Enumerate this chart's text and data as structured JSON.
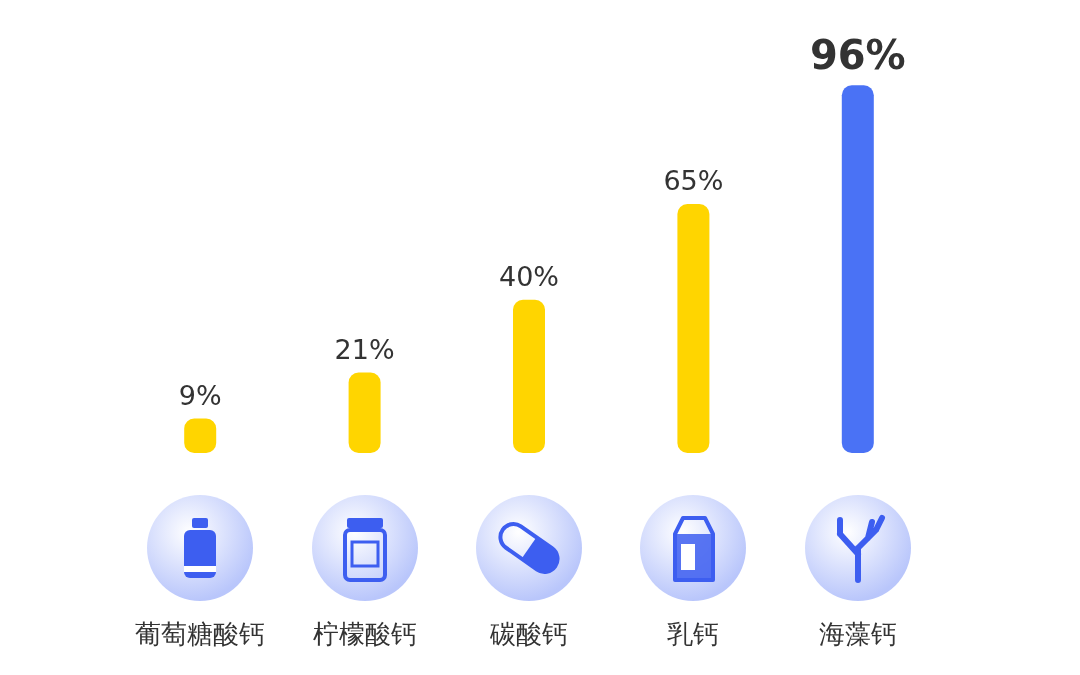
{
  "chart_data": {
    "type": "bar",
    "categories": [
      "葡萄糖酸钙",
      "柠檬酸钙",
      "碳酸钙",
      "乳钙",
      "海藻钙"
    ],
    "values": [
      9,
      21,
      40,
      65,
      96
    ],
    "colors": [
      "#ffd500",
      "#ffd500",
      "#ffd500",
      "#ffd500",
      "#4a72f5"
    ],
    "value_labels": [
      "9%",
      "21%",
      "40%",
      "65%",
      "96%"
    ]
  }
}
